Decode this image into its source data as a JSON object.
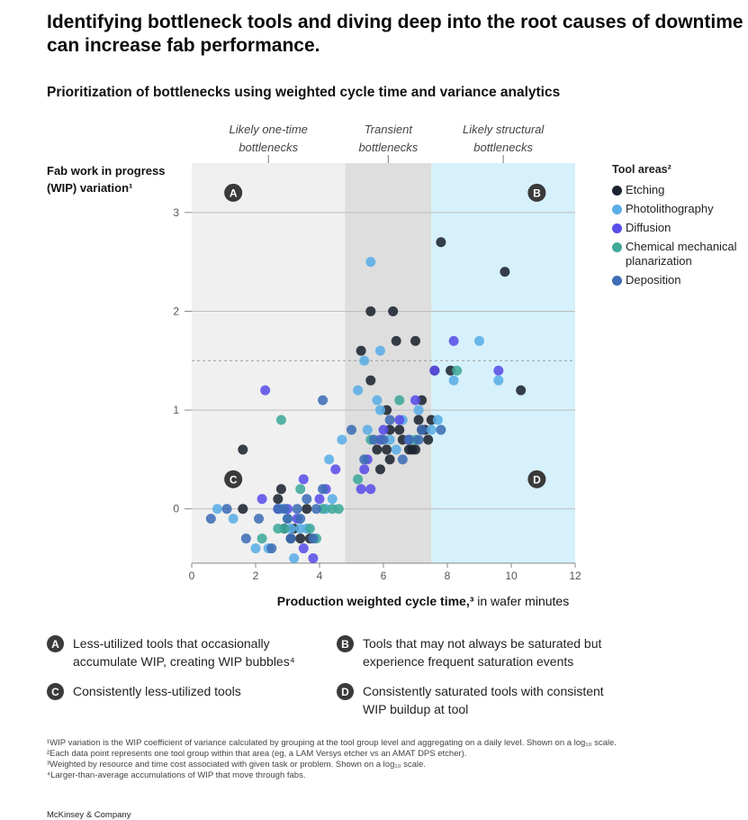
{
  "headline": "Identifying bottleneck tools and diving deep into the root causes of downtime can increase fab performance.",
  "chart_data": {
    "type": "scatter",
    "title": "Prioritization of bottlenecks using weighted cycle time and variance analytics",
    "xlabel": "Production weighted cycle time,³ in wafer minutes",
    "xlabel_bold": "Production weighted cycle time,³",
    "xlabel_rest": " in wafer minutes",
    "ylabel": "Fab work in progress (WIP) variation¹",
    "ylabel_lines": [
      "Fab work in progress",
      "(WIP) variation¹"
    ],
    "xlim": [
      0,
      12
    ],
    "ylim": [
      -0.55,
      3.5
    ],
    "x_ticks": [
      0,
      2,
      4,
      6,
      8,
      10,
      12
    ],
    "y_ticks": [
      0,
      1,
      2,
      3
    ],
    "threshold_y": 1.5,
    "zones": [
      {
        "label_lines": [
          "Likely one-time",
          "bottlenecks"
        ],
        "x_range": [
          0,
          4.8
        ],
        "color": "#f0f0f0"
      },
      {
        "label_lines": [
          "Transient",
          "bottlenecks"
        ],
        "x_range": [
          4.8,
          7.5
        ],
        "color": "#dedede"
      },
      {
        "label_lines": [
          "Likely structural",
          "bottlenecks"
        ],
        "x_range": [
          7.5,
          12
        ],
        "color": "#d6f1fc"
      }
    ],
    "quadrant_markers": [
      {
        "letter": "A",
        "x": 1.3,
        "y": 3.2
      },
      {
        "letter": "B",
        "x": 10.8,
        "y": 3.2
      },
      {
        "letter": "C",
        "x": 1.3,
        "y": 0.3
      },
      {
        "letter": "D",
        "x": 10.8,
        "y": 0.3
      }
    ],
    "legend_title": "Tool areas²",
    "legend_position": "right",
    "series": [
      {
        "name": "Etching",
        "color": "#1c2430",
        "points": [
          [
            1.6,
            0
          ],
          [
            1.6,
            0.6
          ],
          [
            2.7,
            0.1
          ],
          [
            2.8,
            0.2
          ],
          [
            2.9,
            -0.2
          ],
          [
            3.1,
            -0.3
          ],
          [
            3.2,
            -0.2
          ],
          [
            3.4,
            -0.3
          ],
          [
            3.6,
            0
          ],
          [
            3.7,
            -0.3
          ],
          [
            5.3,
            1.6
          ],
          [
            5.6,
            1.3
          ],
          [
            5.6,
            2
          ],
          [
            5.8,
            0.6
          ],
          [
            5.9,
            0.4
          ],
          [
            6.1,
            1
          ],
          [
            6.1,
            0.6
          ],
          [
            6.2,
            0.5
          ],
          [
            6.2,
            0.8
          ],
          [
            6.3,
            2
          ],
          [
            6.4,
            1.7
          ],
          [
            6.5,
            0.8
          ],
          [
            6.6,
            0.7
          ],
          [
            6.8,
            0.6
          ],
          [
            6.9,
            0.6
          ],
          [
            7,
            1.7
          ],
          [
            7,
            0.6
          ],
          [
            7.1,
            0.9
          ],
          [
            7.2,
            1.1
          ],
          [
            7.2,
            0.8
          ],
          [
            7.3,
            0.8
          ],
          [
            7.4,
            0.7
          ],
          [
            7.5,
            0.9
          ],
          [
            7.6,
            1.4
          ],
          [
            7.8,
            2.7
          ],
          [
            8.1,
            1.4
          ],
          [
            9.8,
            2.4
          ],
          [
            10.3,
            1.2
          ]
        ]
      },
      {
        "name": "Photolithography",
        "color": "#5aaee6",
        "points": [
          [
            0.8,
            0
          ],
          [
            1.3,
            -0.1
          ],
          [
            2,
            -0.4
          ],
          [
            2.4,
            -0.4
          ],
          [
            2.8,
            0
          ],
          [
            3.1,
            -0.2
          ],
          [
            3.2,
            -0.5
          ],
          [
            3.4,
            -0.2
          ],
          [
            3.6,
            -0.2
          ],
          [
            4.2,
            0
          ],
          [
            4.3,
            0.5
          ],
          [
            4.4,
            0.1
          ],
          [
            4.7,
            0.7
          ],
          [
            5.2,
            1.2
          ],
          [
            5.4,
            1.5
          ],
          [
            5.5,
            0.8
          ],
          [
            5.6,
            2.5
          ],
          [
            5.8,
            1.1
          ],
          [
            5.9,
            1
          ],
          [
            5.9,
            1.6
          ],
          [
            6.2,
            0.7
          ],
          [
            6.4,
            0.6
          ],
          [
            6.6,
            0.9
          ],
          [
            7.1,
            1
          ],
          [
            7.5,
            0.8
          ],
          [
            7.7,
            0.9
          ],
          [
            8.2,
            1.3
          ],
          [
            9,
            1.7
          ],
          [
            9.6,
            1.3
          ]
        ]
      },
      {
        "name": "Diffusion",
        "color": "#5a4fe8",
        "points": [
          [
            2.2,
            0.1
          ],
          [
            2.3,
            1.2
          ],
          [
            2.7,
            0
          ],
          [
            3,
            0
          ],
          [
            3.3,
            -0.1
          ],
          [
            3.5,
            -0.4
          ],
          [
            3.5,
            0.3
          ],
          [
            3.8,
            -0.5
          ],
          [
            4,
            0.1
          ],
          [
            4.2,
            0.2
          ],
          [
            4.5,
            0.4
          ],
          [
            5.3,
            0.2
          ],
          [
            5.4,
            0.4
          ],
          [
            5.5,
            0.5
          ],
          [
            5.6,
            0.2
          ],
          [
            5.9,
            0.7
          ],
          [
            6,
            0.8
          ],
          [
            6.5,
            0.9
          ],
          [
            6.8,
            0.7
          ],
          [
            7,
            1.1
          ],
          [
            7.6,
            1.4
          ],
          [
            8.2,
            1.7
          ],
          [
            9.6,
            1.4
          ]
        ]
      },
      {
        "name": "Chemical mechanical planarization",
        "color": "#3fa99a",
        "points": [
          [
            2.2,
            -0.3
          ],
          [
            2.7,
            -0.2
          ],
          [
            2.8,
            0.9
          ],
          [
            2.9,
            -0.2
          ],
          [
            3,
            -0.1
          ],
          [
            3.4,
            0.2
          ],
          [
            3.7,
            -0.2
          ],
          [
            3.9,
            -0.3
          ],
          [
            4.1,
            0
          ],
          [
            4.4,
            0
          ],
          [
            4.6,
            0
          ],
          [
            5.2,
            0.3
          ],
          [
            5.6,
            0.7
          ],
          [
            6.5,
            1.1
          ],
          [
            7,
            0.7
          ],
          [
            8.3,
            1.4
          ]
        ]
      },
      {
        "name": "Deposition",
        "color": "#3e6db5",
        "points": [
          [
            0.6,
            -0.1
          ],
          [
            1.1,
            0
          ],
          [
            1.7,
            -0.3
          ],
          [
            2.1,
            -0.1
          ],
          [
            2.5,
            -0.4
          ],
          [
            2.7,
            0
          ],
          [
            2.9,
            0
          ],
          [
            3,
            -0.1
          ],
          [
            3.1,
            -0.3
          ],
          [
            3.3,
            0
          ],
          [
            3.4,
            -0.1
          ],
          [
            3.6,
            0.1
          ],
          [
            3.8,
            -0.3
          ],
          [
            3.9,
            0
          ],
          [
            4.1,
            0.2
          ],
          [
            4.1,
            1.1
          ],
          [
            5,
            0.8
          ],
          [
            5.4,
            0.5
          ],
          [
            5.7,
            0.7
          ],
          [
            6,
            0.7
          ],
          [
            6.2,
            0.9
          ],
          [
            6.6,
            0.5
          ],
          [
            6.8,
            0.7
          ],
          [
            7.1,
            0.7
          ],
          [
            7.2,
            0.8
          ],
          [
            7.8,
            0.8
          ]
        ]
      }
    ]
  },
  "key": {
    "A": "Less-utilized tools that occasionally accumulate WIP, creating WIP bubbles⁴",
    "B": "Tools that may not always be saturated but experience frequent saturation events",
    "C": "Consistently less-utilized tools",
    "D": "Consistently saturated tools with consistent WIP buildup at tool",
    "A_lines": [
      "Less-utilized tools that occasionally",
      "accumulate WIP, creating WIP bubbles⁴"
    ],
    "B_lines": [
      "Tools that may not always be saturated but",
      "experience frequent saturation events"
    ],
    "D_lines": [
      "Consistently saturated tools with consistent",
      "WIP buildup at tool"
    ]
  },
  "footnotes": [
    "¹WIP variation is the WIP coefficient of variance calculated by grouping at the tool group level and aggregating on a daily level. Shown on a log₁₀ scale.",
    "²Each data point represents one tool group within that area (eg, a LAM Versys etcher vs an AMAT DPS etcher).",
    "³Weighted by resource and time cost associated with given task or problem. Shown on a log₁₀ scale.",
    "⁴Larger-than-average accumulations of WIP that move through fabs."
  ],
  "source": "McKinsey & Company"
}
